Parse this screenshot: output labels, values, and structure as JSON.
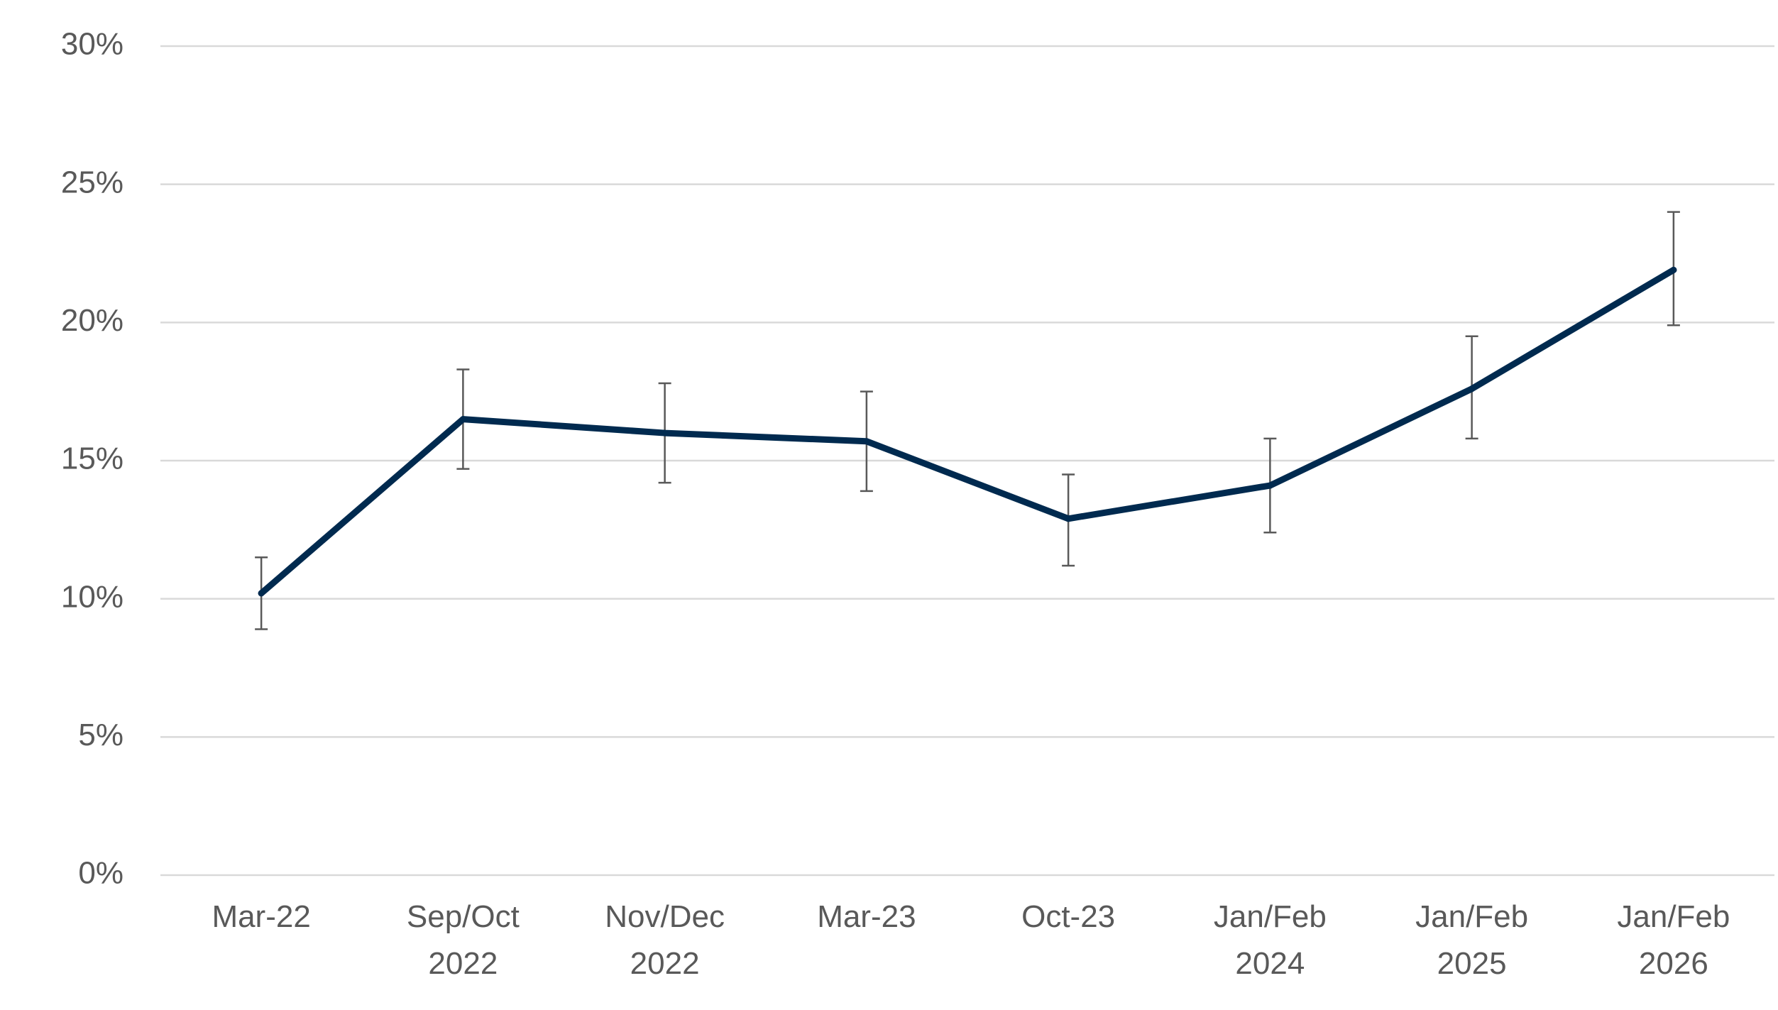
{
  "chart_data": {
    "type": "line",
    "title": "",
    "xlabel": "",
    "ylabel": "",
    "categories": [
      [
        "Mar-22"
      ],
      [
        "Sep/Oct",
        "2022"
      ],
      [
        "Nov/Dec",
        "2022"
      ],
      [
        "Mar-23"
      ],
      [
        "Oct-23"
      ],
      [
        "Jan/Feb",
        "2024"
      ],
      [
        "Jan/Feb",
        "2025"
      ],
      [
        "Jan/Feb",
        "2026"
      ]
    ],
    "series": [
      {
        "values": [
          10.2,
          16.5,
          16.0,
          15.7,
          12.9,
          14.1,
          17.6,
          21.9
        ],
        "error_low": [
          8.9,
          14.7,
          14.2,
          13.9,
          11.2,
          12.4,
          15.8,
          19.9
        ],
        "error_high": [
          11.5,
          18.3,
          17.8,
          17.5,
          14.5,
          15.8,
          19.5,
          24.0
        ],
        "color": "#002a4f"
      }
    ],
    "ylim": [
      0,
      30
    ],
    "yticks": [
      0,
      5,
      10,
      15,
      20,
      25,
      30
    ],
    "ytick_suffix": "%",
    "grid": true,
    "legend": "none"
  }
}
